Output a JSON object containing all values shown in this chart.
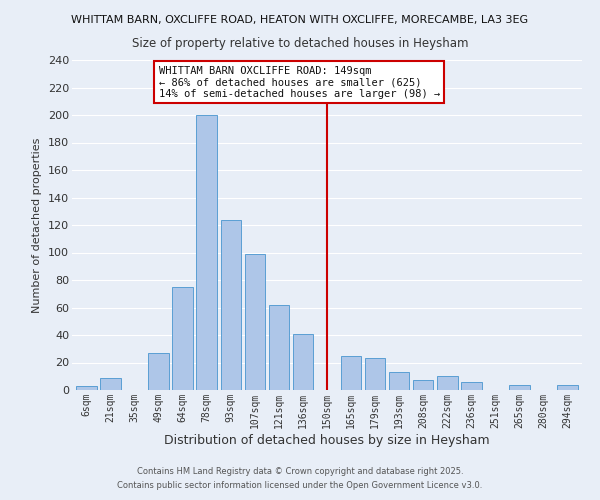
{
  "title1": "WHITTAM BARN, OXCLIFFE ROAD, HEATON WITH OXCLIFFE, MORECAMBE, LA3 3EG",
  "title2": "Size of property relative to detached houses in Heysham",
  "xlabel": "Distribution of detached houses by size in Heysham",
  "ylabel": "Number of detached properties",
  "bar_labels": [
    "6sqm",
    "21sqm",
    "35sqm",
    "49sqm",
    "64sqm",
    "78sqm",
    "93sqm",
    "107sqm",
    "121sqm",
    "136sqm",
    "150sqm",
    "165sqm",
    "179sqm",
    "193sqm",
    "208sqm",
    "222sqm",
    "236sqm",
    "251sqm",
    "265sqm",
    "280sqm",
    "294sqm"
  ],
  "bar_heights": [
    3,
    9,
    0,
    27,
    75,
    200,
    124,
    99,
    62,
    41,
    0,
    25,
    23,
    13,
    7,
    10,
    6,
    0,
    4,
    0,
    4
  ],
  "bar_color": "#aec6e8",
  "bar_edge_color": "#5a9fd4",
  "vline_x": 10.0,
  "vline_color": "#cc0000",
  "annotation_text": "WHITTAM BARN OXCLIFFE ROAD: 149sqm\n← 86% of detached houses are smaller (625)\n14% of semi-detached houses are larger (98) →",
  "annotation_box_color": "#ffffff",
  "annotation_border_color": "#cc0000",
  "ylim": [
    0,
    240
  ],
  "yticks": [
    0,
    20,
    40,
    60,
    80,
    100,
    120,
    140,
    160,
    180,
    200,
    220,
    240
  ],
  "background_color": "#e8eef7",
  "grid_color": "#ffffff",
  "footer1": "Contains HM Land Registry data © Crown copyright and database right 2025.",
  "footer2": "Contains public sector information licensed under the Open Government Licence v3.0."
}
